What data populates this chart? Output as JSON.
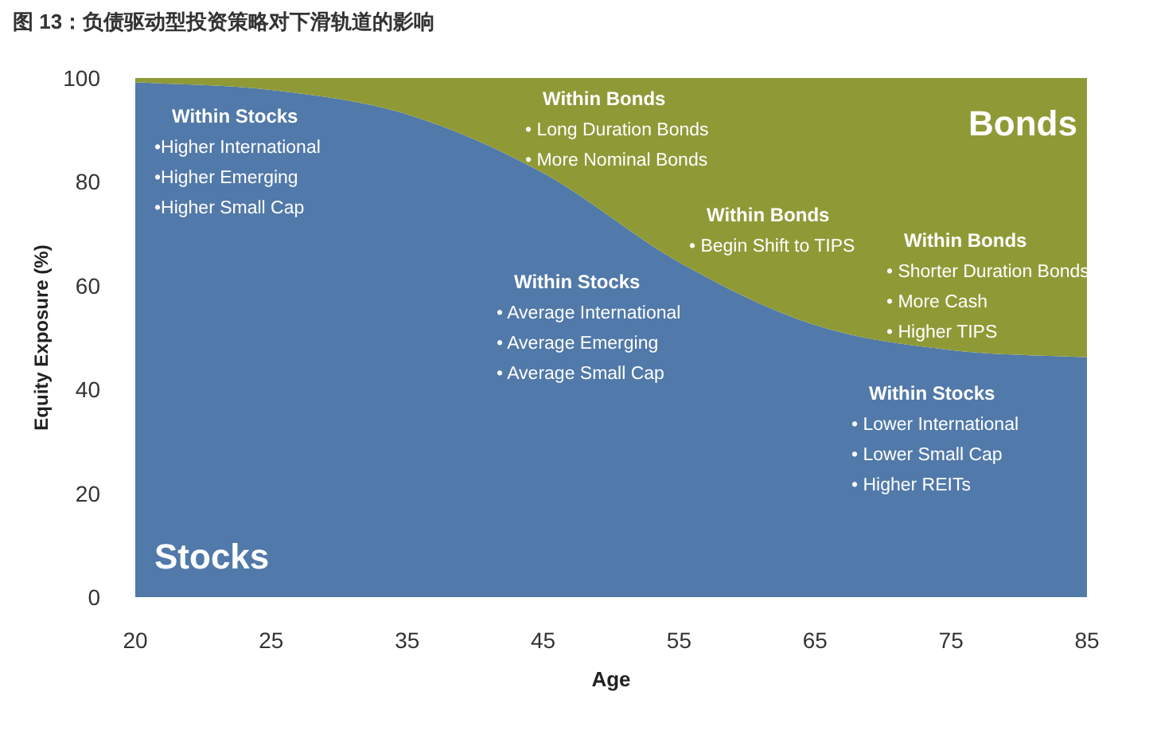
{
  "chart_data": {
    "type": "area",
    "stacked": true,
    "title": "图 13：负债驱动型投资策略对下滑轨道的影响",
    "xlabel": "Age",
    "ylabel": "Equity Exposure (%)",
    "categories": [
      "20",
      "25",
      "35",
      "45",
      "55",
      "65",
      "75",
      "85"
    ],
    "series": [
      {
        "name": "Stocks",
        "color": "#5179a9",
        "values": [
          99.2,
          97.7,
          93,
          81.7,
          64.5,
          52.4,
          47.6,
          46.2
        ]
      },
      {
        "name": "Bonds",
        "color": "#8f9a37",
        "values": [
          0.8,
          2.3,
          7,
          18.3,
          35.5,
          47.6,
          52.4,
          53.8
        ]
      }
    ],
    "ylim": [
      0,
      100
    ],
    "yticks": [
      0,
      20,
      40,
      60,
      80,
      100
    ],
    "annotations": [
      "Within Stocks\n•Higher International\n•Higher Emerging\n•Higher Small Cap",
      "Within Bonds\n• Long Duration Bonds\n• More Nominal Bonds",
      "Within Stocks\n• Average International\n• Average Emerging\n• Average Small Cap",
      "Within Bonds\n• Begin Shift to TIPS",
      "Within Bonds\n• Shorter Duration Bonds\n• More Cash\n• Higher TIPS",
      "Within Stocks\n• Lower International\n• Lower Small Cap\n• Higher REITs"
    ]
  }
}
